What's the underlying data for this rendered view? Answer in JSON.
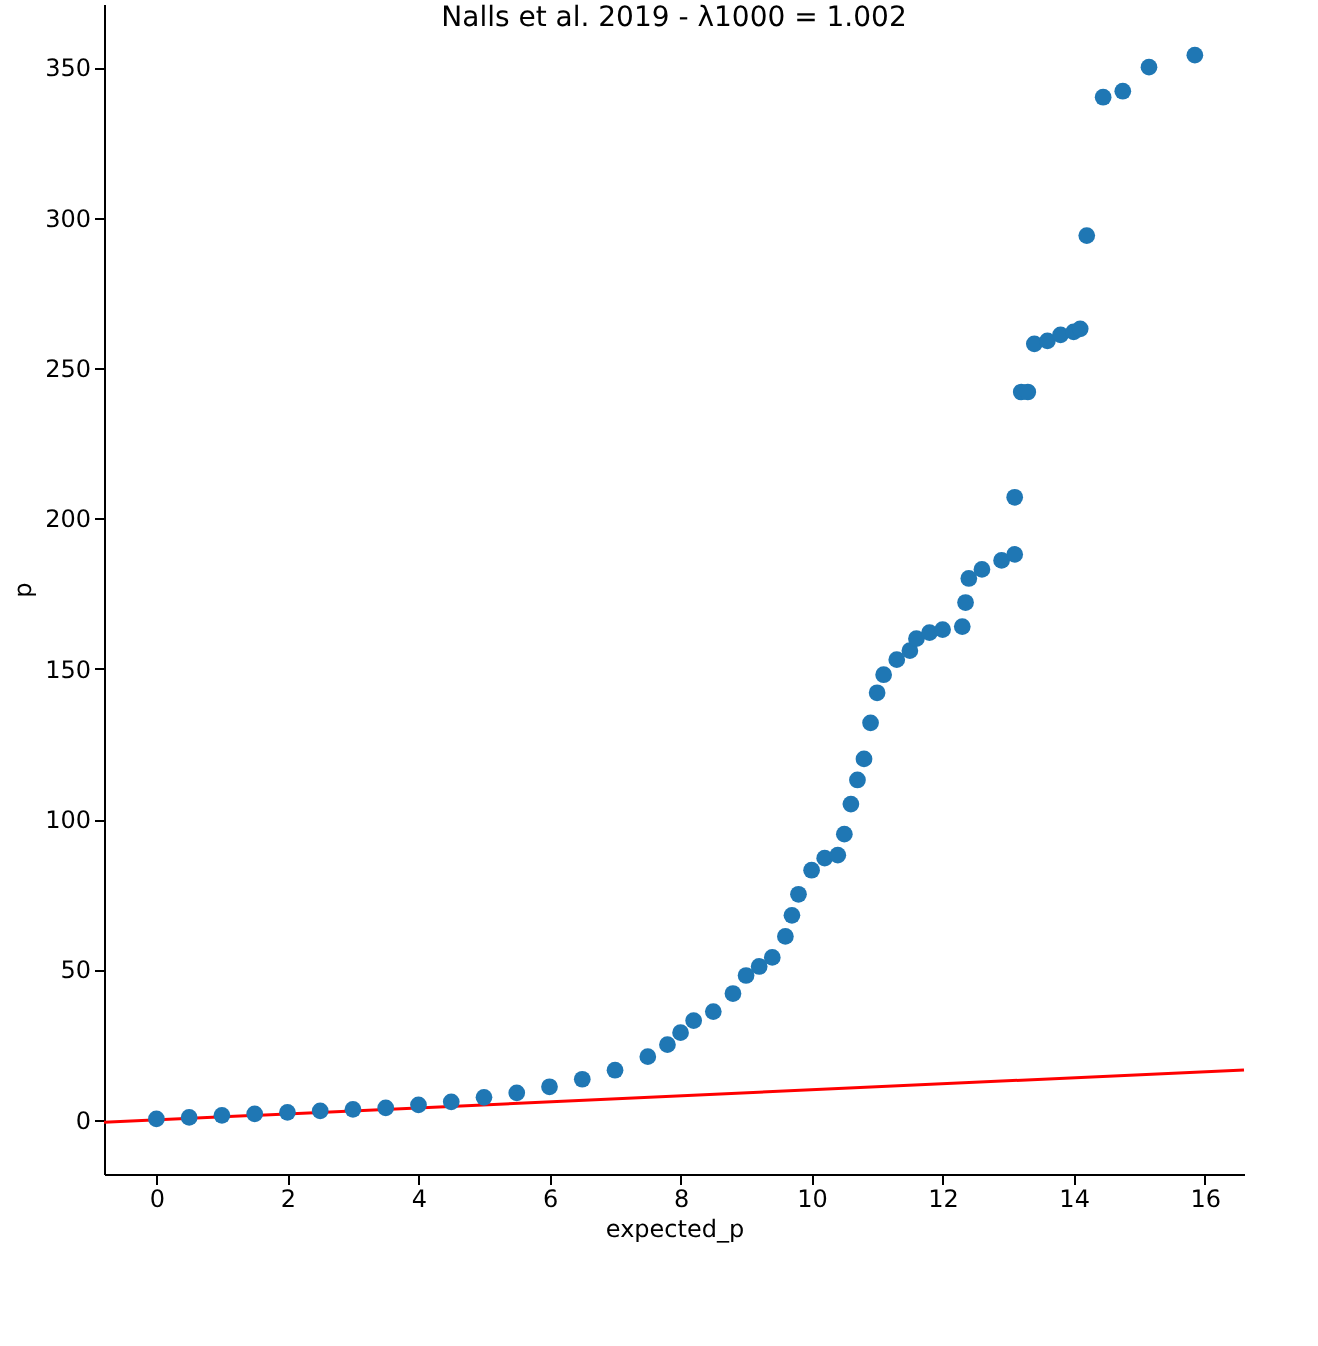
{
  "chart_data": {
    "type": "scatter",
    "title": "Nalls et al. 2019 - λ1000 = 1.002",
    "xlabel": "expected_p",
    "ylabel": "p",
    "xlim": [
      -0.8,
      16.6
    ],
    "ylim": [
      -18,
      371
    ],
    "xticks": [
      0,
      2,
      4,
      6,
      8,
      10,
      12,
      14,
      16
    ],
    "yticks": [
      0,
      50,
      100,
      150,
      200,
      250,
      300,
      350
    ],
    "grid": false,
    "legend": false,
    "marker": "circle",
    "series": [
      {
        "color": "#1f77b4",
        "x": [
          0,
          0.5,
          1,
          1.5,
          2,
          2.5,
          3,
          3.5,
          4,
          4.5,
          5,
          5.5,
          6,
          6.5,
          7,
          7.5,
          7.8,
          8.0,
          8.2,
          8.5,
          8.8,
          9.0,
          9.2,
          9.4,
          9.6,
          9.7,
          9.8,
          10.0,
          10.2,
          10.4,
          10.5,
          10.6,
          10.7,
          10.8,
          10.9,
          11.0,
          11.1,
          11.3,
          11.5,
          11.6,
          11.8,
          12.0,
          12.3,
          12.35,
          12.4,
          12.6,
          12.9,
          13.1,
          13.1,
          13.2,
          13.3,
          13.4,
          13.6,
          13.8,
          14.0,
          14.1,
          14.2,
          14.45,
          14.75,
          15.15,
          15.85
        ],
        "values": [
          0.3,
          0.8,
          1.5,
          2,
          2.5,
          3,
          3.5,
          4,
          5,
          6,
          7.5,
          9,
          11,
          13.5,
          16.5,
          21,
          25,
          29,
          33,
          36,
          42,
          48,
          51,
          54,
          61,
          68,
          75,
          83,
          87,
          88,
          95,
          105,
          113,
          120,
          132,
          142,
          148,
          153,
          156,
          160,
          162,
          163,
          164,
          172,
          180,
          183,
          186,
          188,
          207,
          242,
          242,
          258,
          259,
          261,
          262,
          263,
          294,
          340,
          342,
          350,
          354
        ]
      },
      {
        "type": "line",
        "color": "#ff0000",
        "marker": "none",
        "line_style": "solid",
        "x": [
          -0.8,
          16.6
        ],
        "values": [
          -0.8,
          16.6
        ]
      }
    ]
  }
}
